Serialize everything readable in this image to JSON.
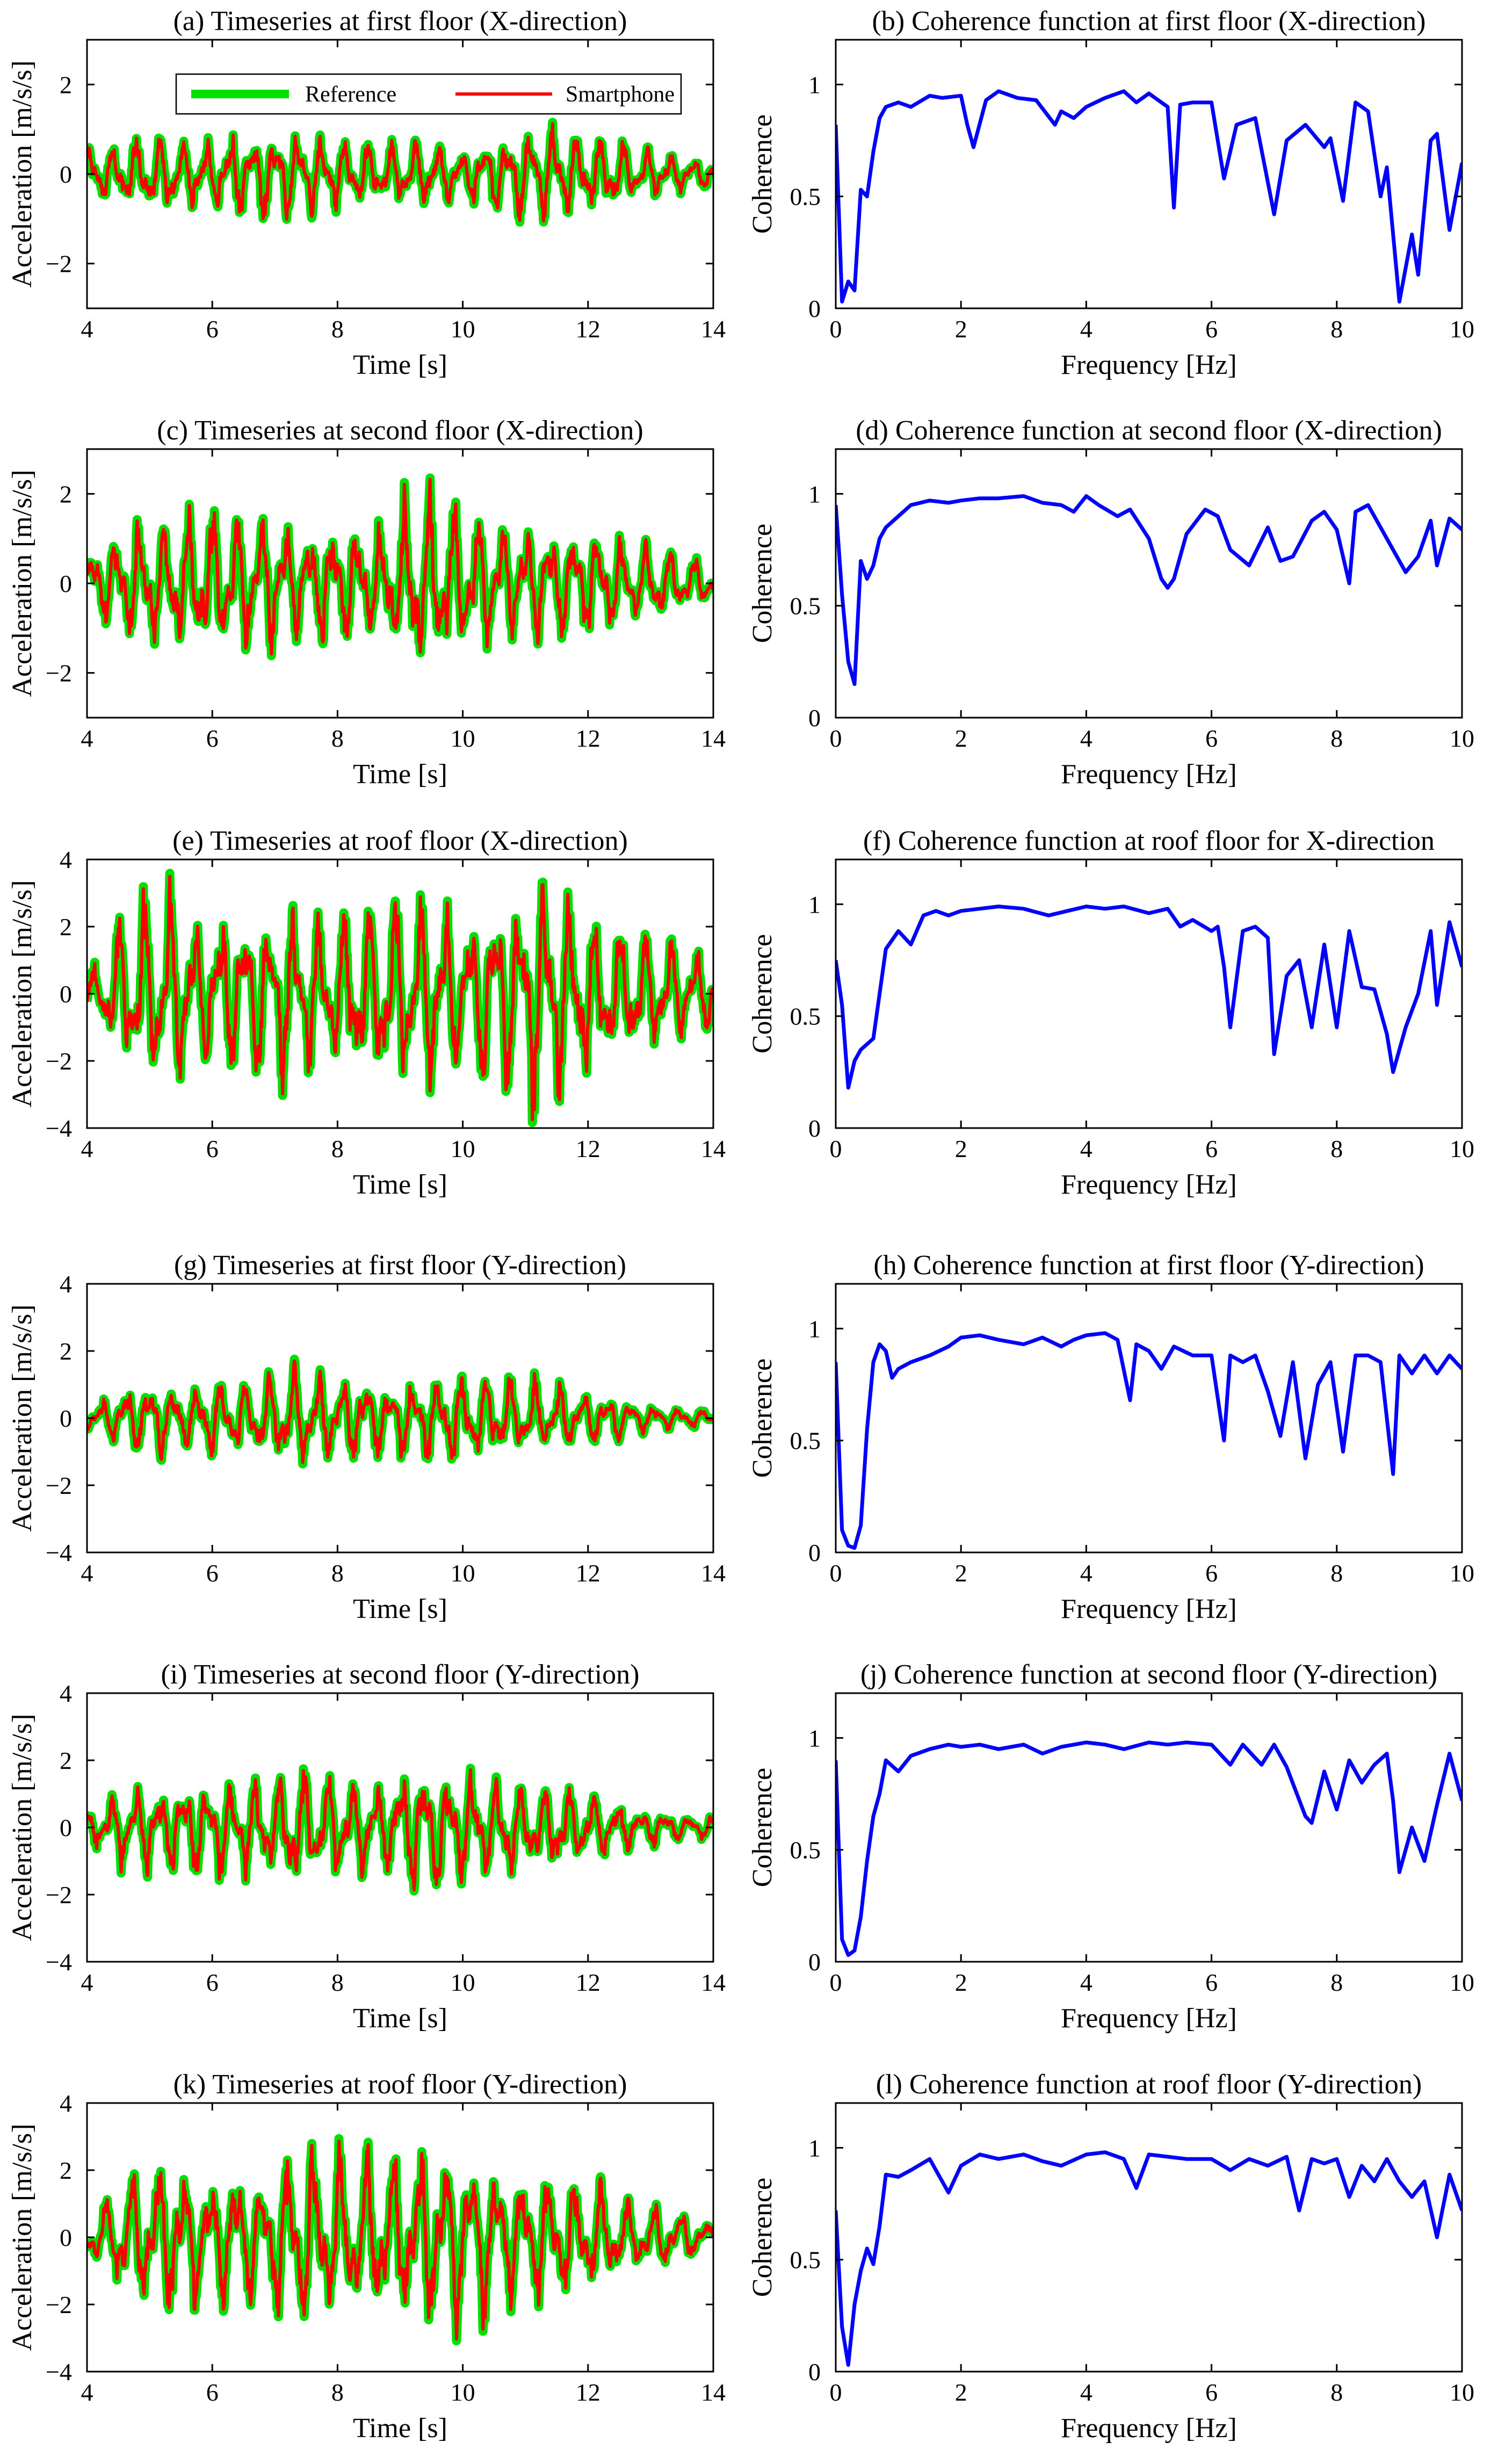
{
  "chart_data": [
    {
      "id": "a",
      "type": "line",
      "kind": "timeseries",
      "title": "(a) Timeseries at first floor (X-direction)",
      "xlabel": "Time [s]",
      "ylabel": "Acceleration [m/s/s]",
      "xlim": [
        4,
        14
      ],
      "ylim": [
        -3,
        3
      ],
      "xticks": [
        4,
        6,
        8,
        10,
        12,
        14
      ],
      "yticks": [
        -2,
        0,
        2
      ],
      "envelope": [
        0.55,
        0.7,
        0.8,
        0.75,
        0.9,
        0.85,
        0.8,
        0.6,
        0.7,
        0.55,
        0.85,
        1.0,
        0.9,
        0.6,
        0.4,
        0.3
      ],
      "dominant_freq_hz": 2.7,
      "seed": 1,
      "legend": {
        "position": "top-center",
        "reference": "Reference",
        "smartphone": "Smartphone"
      },
      "series_colors": {
        "reference": "#00e000",
        "smartphone": "#ff0000"
      }
    },
    {
      "id": "b",
      "type": "line",
      "kind": "coherence",
      "title": "(b) Coherence function at first floor (X-direction)",
      "xlabel": "Frequency [Hz]",
      "ylabel": "Coherence",
      "xlim": [
        0,
        10
      ],
      "ylim": [
        0,
        1.2
      ],
      "xticks": [
        0,
        2,
        4,
        6,
        8,
        10
      ],
      "yticks": [
        0,
        0.5,
        1
      ],
      "color": "#0000ff",
      "x": [
        0,
        0.1,
        0.2,
        0.3,
        0.4,
        0.5,
        0.6,
        0.7,
        0.8,
        1.0,
        1.2,
        1.5,
        1.7,
        2.0,
        2.1,
        2.2,
        2.4,
        2.6,
        2.9,
        3.2,
        3.5,
        3.6,
        3.8,
        4.0,
        4.3,
        4.6,
        4.8,
        5.0,
        5.3,
        5.4,
        5.5,
        5.7,
        6.0,
        6.2,
        6.4,
        6.7,
        7.0,
        7.2,
        7.5,
        7.8,
        7.9,
        8.1,
        8.3,
        8.5,
        8.7,
        8.8,
        9.0,
        9.2,
        9.3,
        9.5,
        9.6,
        9.8,
        10.0
      ],
      "y": [
        0.82,
        0.03,
        0.12,
        0.08,
        0.53,
        0.5,
        0.7,
        0.85,
        0.9,
        0.92,
        0.9,
        0.95,
        0.94,
        0.95,
        0.82,
        0.72,
        0.93,
        0.97,
        0.94,
        0.93,
        0.82,
        0.88,
        0.85,
        0.9,
        0.94,
        0.97,
        0.92,
        0.96,
        0.9,
        0.45,
        0.91,
        0.92,
        0.92,
        0.58,
        0.82,
        0.85,
        0.42,
        0.75,
        0.82,
        0.72,
        0.76,
        0.48,
        0.92,
        0.88,
        0.5,
        0.63,
        0.03,
        0.33,
        0.15,
        0.75,
        0.78,
        0.35,
        0.65
      ]
    },
    {
      "id": "c",
      "type": "line",
      "kind": "timeseries",
      "title": "(c) Timeseries at second floor (X-direction)",
      "xlabel": "Time [s]",
      "ylabel": "Acceleration [m/s/s]",
      "xlim": [
        4,
        14
      ],
      "ylim": [
        -3,
        3
      ],
      "xticks": [
        4,
        6,
        8,
        10,
        12,
        14
      ],
      "yticks": [
        -2,
        0,
        2
      ],
      "envelope": [
        0.7,
        1.2,
        1.5,
        1.6,
        1.4,
        1.3,
        1.2,
        1.2,
        2.0,
        1.5,
        1.3,
        1.3,
        1.1,
        0.9,
        0.7,
        0.4
      ],
      "dominant_freq_hz": 2.6,
      "seed": 2,
      "series_colors": {
        "reference": "#00e000",
        "smartphone": "#ff0000"
      }
    },
    {
      "id": "d",
      "type": "line",
      "kind": "coherence",
      "title": "(d) Coherence function at second floor (X-direction)",
      "xlabel": "Frequency [Hz]",
      "ylabel": "Coherence",
      "xlim": [
        0,
        10
      ],
      "ylim": [
        0,
        1.2
      ],
      "xticks": [
        0,
        2,
        4,
        6,
        8,
        10
      ],
      "yticks": [
        0,
        0.5,
        1
      ],
      "color": "#0000ff",
      "x": [
        0,
        0.1,
        0.2,
        0.3,
        0.4,
        0.5,
        0.6,
        0.7,
        0.8,
        1.0,
        1.2,
        1.5,
        1.8,
        2.0,
        2.3,
        2.6,
        3.0,
        3.3,
        3.6,
        3.8,
        4.0,
        4.2,
        4.5,
        4.7,
        5.0,
        5.2,
        5.3,
        5.4,
        5.6,
        5.9,
        6.1,
        6.3,
        6.6,
        6.9,
        7.1,
        7.3,
        7.6,
        7.8,
        8.0,
        8.2,
        8.3,
        8.5,
        8.7,
        8.9,
        9.1,
        9.3,
        9.5,
        9.6,
        9.8,
        10.0
      ],
      "y": [
        0.95,
        0.55,
        0.25,
        0.15,
        0.7,
        0.62,
        0.68,
        0.8,
        0.85,
        0.9,
        0.95,
        0.97,
        0.96,
        0.97,
        0.98,
        0.98,
        0.99,
        0.96,
        0.95,
        0.92,
        0.99,
        0.95,
        0.9,
        0.93,
        0.8,
        0.62,
        0.58,
        0.62,
        0.82,
        0.93,
        0.9,
        0.75,
        0.68,
        0.85,
        0.7,
        0.72,
        0.88,
        0.92,
        0.84,
        0.6,
        0.92,
        0.95,
        0.85,
        0.75,
        0.65,
        0.72,
        0.88,
        0.68,
        0.89,
        0.84
      ]
    },
    {
      "id": "e",
      "type": "line",
      "kind": "timeseries",
      "title": "(e) Timeseries at roof floor (X-direction)",
      "xlabel": "Time [s]",
      "ylabel": "Acceleration [m/s/s]",
      "xlim": [
        4,
        14
      ],
      "ylim": [
        -4,
        4
      ],
      "xticks": [
        4,
        6,
        8,
        10,
        12,
        14
      ],
      "yticks": [
        -4,
        -2,
        0,
        2,
        4
      ],
      "envelope": [
        0.4,
        2.5,
        2.8,
        2.2,
        2.4,
        2.5,
        2.2,
        2.6,
        3.1,
        2.2,
        3.0,
        3.2,
        2.5,
        1.8,
        1.5,
        1.0
      ],
      "dominant_freq_hz": 2.5,
      "seed": 3,
      "series_colors": {
        "reference": "#00e000",
        "smartphone": "#ff0000"
      }
    },
    {
      "id": "f",
      "type": "line",
      "kind": "coherence",
      "title": "(f) Coherence function at roof floor for X-direction",
      "xlabel": "Frequency [Hz]",
      "ylabel": "Coherence",
      "xlim": [
        0,
        10
      ],
      "ylim": [
        0,
        1.2
      ],
      "xticks": [
        0,
        2,
        4,
        6,
        8,
        10
      ],
      "yticks": [
        0,
        0.5,
        1
      ],
      "color": "#0000ff",
      "x": [
        0,
        0.1,
        0.2,
        0.3,
        0.4,
        0.6,
        0.8,
        1.0,
        1.2,
        1.4,
        1.6,
        1.8,
        2.0,
        2.3,
        2.6,
        3.0,
        3.4,
        3.7,
        4.0,
        4.3,
        4.6,
        5.0,
        5.3,
        5.5,
        5.7,
        6.0,
        6.1,
        6.2,
        6.3,
        6.5,
        6.7,
        6.9,
        7.0,
        7.2,
        7.4,
        7.6,
        7.8,
        8.0,
        8.2,
        8.4,
        8.6,
        8.8,
        8.9,
        9.1,
        9.3,
        9.5,
        9.6,
        9.8,
        10.0
      ],
      "y": [
        0.75,
        0.55,
        0.18,
        0.3,
        0.35,
        0.4,
        0.8,
        0.88,
        0.82,
        0.95,
        0.97,
        0.95,
        0.97,
        0.98,
        0.99,
        0.98,
        0.95,
        0.97,
        0.99,
        0.98,
        0.99,
        0.96,
        0.98,
        0.9,
        0.93,
        0.88,
        0.9,
        0.72,
        0.45,
        0.88,
        0.9,
        0.85,
        0.33,
        0.68,
        0.75,
        0.45,
        0.82,
        0.45,
        0.88,
        0.63,
        0.62,
        0.42,
        0.25,
        0.45,
        0.6,
        0.88,
        0.55,
        0.92,
        0.72
      ]
    },
    {
      "id": "g",
      "type": "line",
      "kind": "timeseries",
      "title": "(g) Timeseries at first floor (Y-direction)",
      "xlabel": "Time [s]",
      "ylabel": "Acceleration [m/s/s]",
      "xlim": [
        4,
        14
      ],
      "ylim": [
        -4,
        4
      ],
      "xticks": [
        4,
        6,
        8,
        10,
        12,
        14
      ],
      "yticks": [
        -4,
        -2,
        0,
        2,
        4
      ],
      "envelope": [
        0.3,
        0.9,
        1.0,
        1.1,
        1.0,
        1.5,
        1.1,
        1.0,
        1.2,
        1.3,
        1.1,
        1.0,
        0.8,
        0.5,
        0.3,
        0.2
      ],
      "dominant_freq_hz": 2.6,
      "seed": 4,
      "series_colors": {
        "reference": "#00e000",
        "smartphone": "#ff0000"
      }
    },
    {
      "id": "h",
      "type": "line",
      "kind": "coherence",
      "title": "(h) Coherence function at first floor (Y-direction)",
      "xlabel": "Frequency [Hz]",
      "ylabel": "Coherence",
      "xlim": [
        0,
        10
      ],
      "ylim": [
        0,
        1.2
      ],
      "xticks": [
        0,
        2,
        4,
        6,
        8,
        10
      ],
      "yticks": [
        0,
        0.5,
        1
      ],
      "color": "#0000ff",
      "x": [
        0,
        0.1,
        0.2,
        0.3,
        0.4,
        0.5,
        0.6,
        0.7,
        0.8,
        0.9,
        1.0,
        1.2,
        1.5,
        1.8,
        2.0,
        2.3,
        2.6,
        3.0,
        3.3,
        3.6,
        3.8,
        4.0,
        4.3,
        4.5,
        4.7,
        4.8,
        5.0,
        5.2,
        5.4,
        5.7,
        6.0,
        6.2,
        6.3,
        6.5,
        6.7,
        6.9,
        7.1,
        7.3,
        7.5,
        7.7,
        7.9,
        8.1,
        8.3,
        8.5,
        8.7,
        8.9,
        9.0,
        9.2,
        9.4,
        9.6,
        9.8,
        10.0
      ],
      "y": [
        0.85,
        0.1,
        0.03,
        0.02,
        0.12,
        0.55,
        0.85,
        0.93,
        0.9,
        0.78,
        0.82,
        0.85,
        0.88,
        0.92,
        0.96,
        0.97,
        0.95,
        0.93,
        0.96,
        0.92,
        0.95,
        0.97,
        0.98,
        0.95,
        0.68,
        0.93,
        0.9,
        0.82,
        0.92,
        0.88,
        0.88,
        0.5,
        0.88,
        0.85,
        0.88,
        0.72,
        0.52,
        0.85,
        0.42,
        0.75,
        0.85,
        0.45,
        0.88,
        0.88,
        0.85,
        0.35,
        0.88,
        0.8,
        0.88,
        0.8,
        0.88,
        0.82
      ]
    },
    {
      "id": "i",
      "type": "line",
      "kind": "timeseries",
      "title": "(i) Timeseries at second floor (Y-direction)",
      "xlabel": "Time [s]",
      "ylabel": "Acceleration [m/s/s]",
      "xlim": [
        4,
        14
      ],
      "ylim": [
        -4,
        4
      ],
      "xticks": [
        4,
        6,
        8,
        10,
        12,
        14
      ],
      "yticks": [
        -4,
        -2,
        0,
        2,
        4
      ],
      "envelope": [
        0.4,
        1.2,
        1.2,
        1.4,
        1.4,
        1.7,
        1.5,
        1.4,
        1.8,
        1.5,
        1.4,
        1.2,
        1.0,
        0.6,
        0.4,
        0.3
      ],
      "dominant_freq_hz": 2.6,
      "seed": 5,
      "series_colors": {
        "reference": "#00e000",
        "smartphone": "#ff0000"
      }
    },
    {
      "id": "j",
      "type": "line",
      "kind": "coherence",
      "title": "(j) Coherence function at second floor (Y-direction)",
      "xlabel": "Frequency [Hz]",
      "ylabel": "Coherence",
      "xlim": [
        0,
        10
      ],
      "ylim": [
        0,
        1.2
      ],
      "xticks": [
        0,
        2,
        4,
        6,
        8,
        10
      ],
      "yticks": [
        0,
        0.5,
        1
      ],
      "color": "#0000ff",
      "x": [
        0,
        0.1,
        0.2,
        0.3,
        0.4,
        0.5,
        0.6,
        0.7,
        0.8,
        1.0,
        1.2,
        1.5,
        1.8,
        2.0,
        2.3,
        2.6,
        3.0,
        3.3,
        3.6,
        4.0,
        4.3,
        4.6,
        5.0,
        5.3,
        5.6,
        6.0,
        6.3,
        6.5,
        6.8,
        7.0,
        7.2,
        7.5,
        7.6,
        7.8,
        8.0,
        8.2,
        8.4,
        8.6,
        8.8,
        8.9,
        9.0,
        9.2,
        9.4,
        9.6,
        9.8,
        10.0
      ],
      "y": [
        0.9,
        0.1,
        0.03,
        0.05,
        0.2,
        0.45,
        0.65,
        0.75,
        0.9,
        0.85,
        0.92,
        0.95,
        0.97,
        0.96,
        0.97,
        0.95,
        0.97,
        0.93,
        0.96,
        0.98,
        0.97,
        0.95,
        0.98,
        0.97,
        0.98,
        0.97,
        0.88,
        0.97,
        0.88,
        0.97,
        0.87,
        0.65,
        0.62,
        0.85,
        0.68,
        0.9,
        0.8,
        0.88,
        0.93,
        0.72,
        0.4,
        0.6,
        0.45,
        0.7,
        0.93,
        0.72
      ]
    },
    {
      "id": "k",
      "type": "line",
      "kind": "timeseries",
      "title": "(k) Timeseries at roof floor (Y-direction)",
      "xlabel": "Time [s]",
      "ylabel": "Acceleration [m/s/s]",
      "xlim": [
        4,
        14
      ],
      "ylim": [
        -4,
        4
      ],
      "xticks": [
        4,
        6,
        8,
        10,
        12,
        14
      ],
      "yticks": [
        -4,
        -2,
        0,
        2,
        4
      ],
      "envelope": [
        0.5,
        1.8,
        2.2,
        1.7,
        1.8,
        2.6,
        2.2,
        2.5,
        2.3,
        2.7,
        2.0,
        1.8,
        1.5,
        1.1,
        0.8,
        0.5
      ],
      "dominant_freq_hz": 2.4,
      "seed": 6,
      "series_colors": {
        "reference": "#00e000",
        "smartphone": "#ff0000"
      }
    },
    {
      "id": "l",
      "type": "line",
      "kind": "coherence",
      "title": "(l) Coherence function at roof floor (Y-direction)",
      "xlabel": "Frequency [Hz]",
      "ylabel": "Coherence",
      "xlim": [
        0,
        10
      ],
      "ylim": [
        0,
        1.2
      ],
      "xticks": [
        0,
        2,
        4,
        6,
        8,
        10
      ],
      "yticks": [
        0,
        0.5,
        1
      ],
      "color": "#0000ff",
      "x": [
        0,
        0.1,
        0.2,
        0.3,
        0.4,
        0.5,
        0.6,
        0.7,
        0.8,
        1.0,
        1.2,
        1.5,
        1.8,
        2.0,
        2.3,
        2.6,
        3.0,
        3.3,
        3.6,
        4.0,
        4.3,
        4.6,
        4.8,
        5.0,
        5.3,
        5.6,
        6.0,
        6.3,
        6.6,
        6.9,
        7.2,
        7.4,
        7.6,
        7.8,
        8.0,
        8.2,
        8.4,
        8.6,
        8.8,
        9.0,
        9.2,
        9.4,
        9.6,
        9.8,
        10.0
      ],
      "y": [
        0.72,
        0.2,
        0.03,
        0.3,
        0.45,
        0.55,
        0.48,
        0.65,
        0.88,
        0.87,
        0.9,
        0.95,
        0.8,
        0.92,
        0.97,
        0.95,
        0.97,
        0.94,
        0.92,
        0.97,
        0.98,
        0.95,
        0.82,
        0.97,
        0.96,
        0.95,
        0.95,
        0.9,
        0.95,
        0.92,
        0.96,
        0.72,
        0.95,
        0.93,
        0.95,
        0.78,
        0.92,
        0.85,
        0.95,
        0.85,
        0.78,
        0.85,
        0.6,
        0.88,
        0.72
      ]
    }
  ]
}
